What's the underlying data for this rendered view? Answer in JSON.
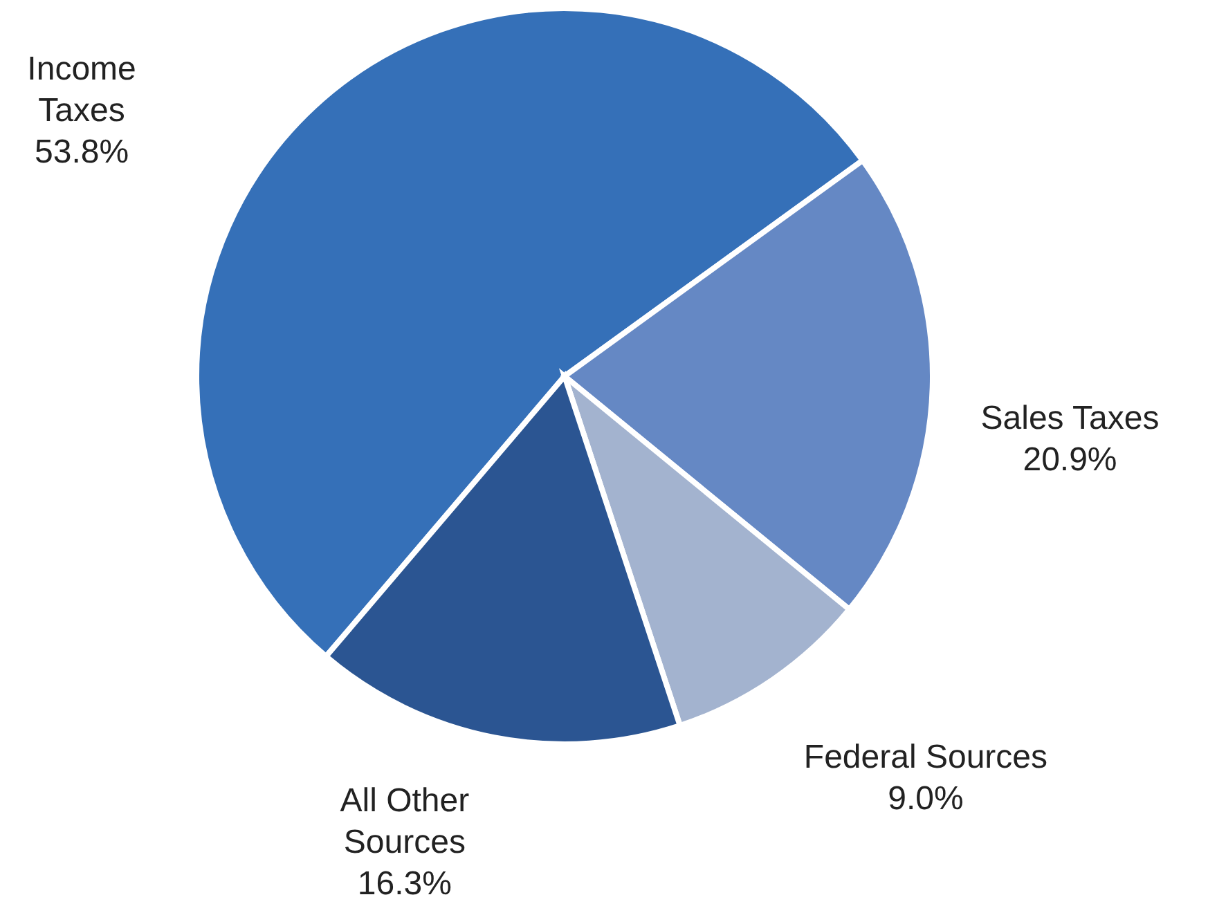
{
  "chart_data": {
    "type": "pie",
    "categories": [
      "Income Taxes",
      "Sales Taxes",
      "Federal Sources",
      "All Other Sources"
    ],
    "values": [
      53.8,
      20.9,
      9.0,
      16.3
    ],
    "colors": [
      "#3570b8",
      "#6588c4",
      "#a3b3cf",
      "#2b5592"
    ],
    "value_labels": [
      "53.8%",
      "20.9%",
      "9.0%",
      "16.3%"
    ]
  }
}
